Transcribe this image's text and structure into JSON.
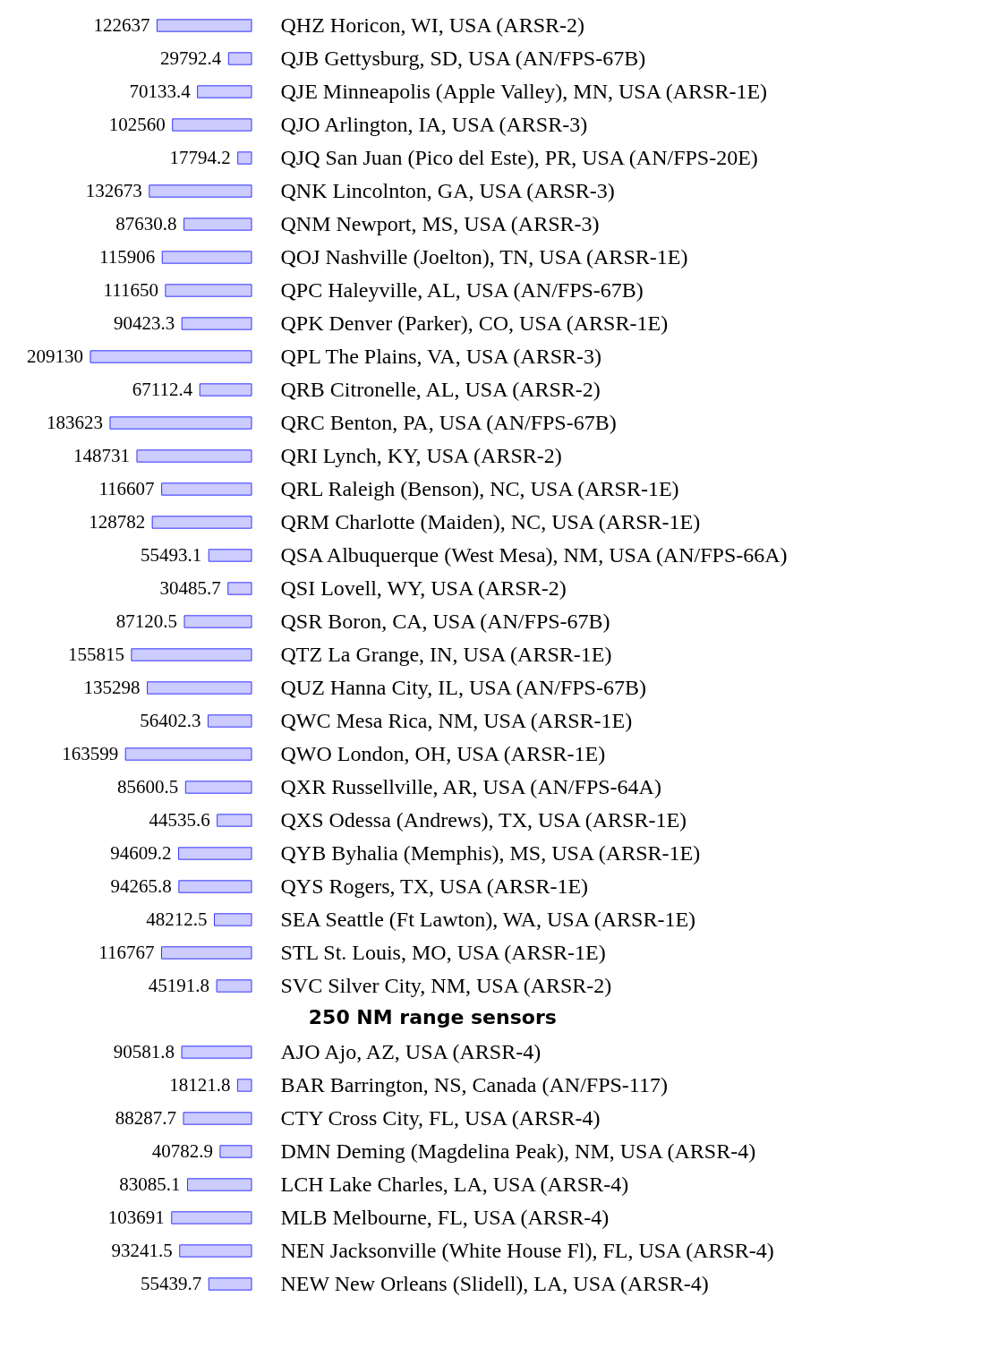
{
  "chart_data": [
    {
      "type": "bar",
      "orientation": "horizontal",
      "data_labels": true,
      "color": "#ccccff",
      "categories": [
        "QHZ Horicon, WI, USA (ARSR-2)",
        "QJB Gettysburg, SD, USA (AN/FPS-67B)",
        "QJE Minneapolis (Apple Valley), MN, USA (ARSR-1E)",
        "QJO Arlington, IA, USA (ARSR-3)",
        "QJQ San Juan (Pico del Este), PR, USA (AN/FPS-20E)",
        "QNK Lincolnton, GA, USA (ARSR-3)",
        "QNM Newport, MS, USA (ARSR-3)",
        "QOJ Nashville (Joelton), TN, USA (ARSR-1E)",
        "QPC Haleyville, AL, USA (AN/FPS-67B)",
        "QPK Denver (Parker), CO, USA (ARSR-1E)",
        "QPL The Plains, VA, USA (ARSR-3)",
        "QRB Citronelle, AL, USA (ARSR-2)",
        "QRC Benton, PA, USA (AN/FPS-67B)",
        "QRI Lynch, KY, USA (ARSR-2)",
        "QRL Raleigh (Benson), NC, USA (ARSR-1E)",
        "QRM Charlotte (Maiden), NC, USA (ARSR-1E)",
        "QSA Albuquerque (West Mesa), NM, USA (AN/FPS-66A)",
        "QSI Lovell, WY, USA (ARSR-2)",
        "QSR Boron, CA, USA (AN/FPS-67B)",
        "QTZ La Grange, IN, USA (ARSR-1E)",
        "QUZ Hanna City, IL, USA (AN/FPS-67B)",
        "QWC Mesa Rica, NM, USA (ARSR-1E)",
        "QWO London, OH, USA (ARSR-1E)",
        "QXR Russellville, AR, USA (AN/FPS-64A)",
        "QXS Odessa (Andrews), TX, USA (ARSR-1E)",
        "QYB Byhalia (Memphis), MS, USA (ARSR-1E)",
        "QYS Rogers, TX, USA (ARSR-1E)",
        "SEA Seattle (Ft Lawton), WA, USA (ARSR-1E)",
        "STL St. Louis, MO, USA (ARSR-1E)",
        "SVC Silver City, NM, USA (ARSR-2)"
      ],
      "values": [
        122637,
        29792.4,
        70133.4,
        102560,
        17794.2,
        132673,
        87630.8,
        115906,
        111650,
        90423.3,
        209130,
        67112.4,
        183623,
        148731,
        116607,
        128782,
        55493.1,
        30485.7,
        87120.5,
        155815,
        135298,
        56402.3,
        163599,
        85600.5,
        44535.6,
        94609.2,
        94265.8,
        48212.5,
        116767,
        45191.8
      ]
    },
    {
      "type": "bar",
      "orientation": "horizontal",
      "data_labels": true,
      "color": "#ccccff",
      "title": "250 NM range sensors",
      "categories": [
        "AJO Ajo, AZ, USA (ARSR-4)",
        "BAR Barrington, NS, Canada (AN/FPS-117)",
        "CTY Cross City, FL, USA (ARSR-4)",
        "DMN Deming (Magdelina Peak), NM, USA (ARSR-4)",
        "LCH Lake Charles, LA, USA (ARSR-4)",
        "MLB Melbourne, FL, USA (ARSR-4)",
        "NEN Jacksonville (White House Fl), FL, USA (ARSR-4)",
        "NEW New Orleans (Slidell), LA, USA (ARSR-4)"
      ],
      "values": [
        90581.8,
        18121.8,
        88287.7,
        40782.9,
        83085.1,
        103691,
        93241.5,
        55439.7
      ]
    }
  ]
}
